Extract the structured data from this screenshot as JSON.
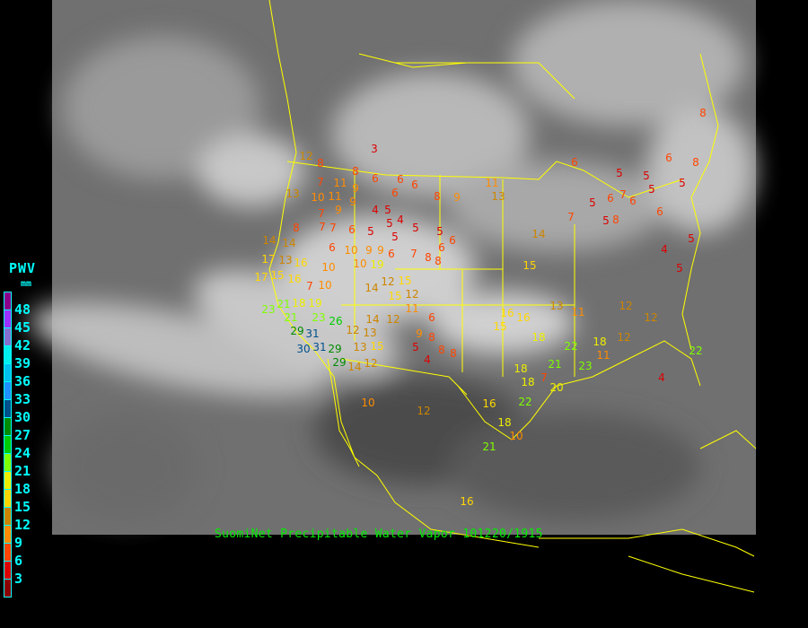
{
  "legend": {
    "title": "PWV",
    "unit": "mm",
    "labels": [
      "48",
      "45",
      "42",
      "39",
      "36",
      "33",
      "30",
      "27",
      "24",
      "21",
      "18",
      "15",
      "12",
      "9",
      "6",
      "3"
    ],
    "colors": [
      "#8b008b",
      "#9b30ff",
      "#8470d0",
      "#00eeee",
      "#00bfee",
      "#1e90ff",
      "#00508b",
      "#008b00",
      "#00cd00",
      "#7fff00",
      "#eeee00",
      "#ffd700",
      "#cd8500",
      "#ff8c00",
      "#ff4500",
      "#dd0000",
      "#8b0000"
    ]
  },
  "caption": "SuomiNet Precipitable Water Vapor 101220/1915",
  "colors": {
    "background": "#000000",
    "boundaries": "#ffff00",
    "caption": "#00ee00",
    "legend_text": "#00ffff"
  },
  "stations": [
    3,
    12,
    8,
    8,
    6,
    6,
    7,
    11,
    9,
    13,
    10,
    11,
    9,
    9,
    7,
    7,
    7,
    6,
    4,
    5,
    5,
    6,
    5,
    4,
    5,
    5,
    5,
    6,
    6,
    8,
    9,
    11,
    13,
    8,
    6,
    14,
    14,
    13,
    17,
    15,
    16,
    16,
    7,
    10,
    10,
    9,
    10,
    9,
    6,
    7,
    8,
    8,
    14,
    12,
    15,
    12,
    15,
    17,
    10,
    19,
    18,
    21,
    21,
    19,
    23,
    29,
    23,
    26,
    31,
    31,
    30,
    29,
    29,
    14,
    12,
    11,
    6,
    12,
    13,
    13,
    15,
    9,
    8,
    5,
    8,
    4,
    8,
    12,
    14,
    6,
    5,
    5,
    6,
    8,
    6,
    5,
    5,
    6,
    6,
    5,
    5,
    4,
    5,
    7,
    8,
    6,
    7,
    5,
    8,
    14,
    15,
    13,
    11,
    12,
    12,
    16,
    15,
    16,
    18,
    18,
    18,
    21,
    22,
    23,
    20,
    16,
    22,
    18,
    10,
    12,
    16,
    4,
    7,
    21,
    22,
    10,
    12,
    18,
    11,
    15,
    14,
    12,
    12
  ]
}
